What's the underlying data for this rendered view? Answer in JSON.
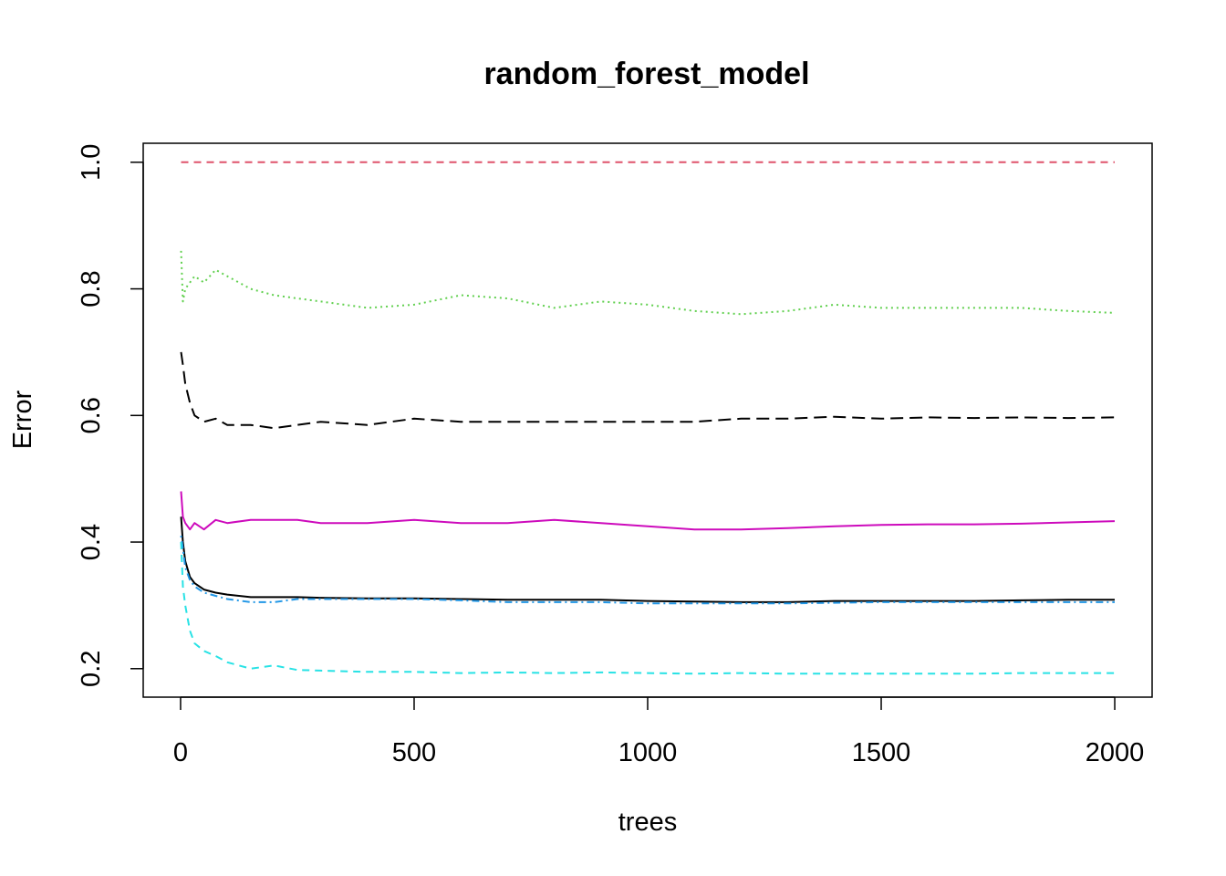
{
  "chart_data": {
    "type": "line",
    "title": "random_forest_model",
    "xlabel": "trees",
    "ylabel": "Error",
    "xlim": [
      -80,
      2080
    ],
    "ylim": [
      0.155,
      1.03
    ],
    "x_ticks": [
      0,
      500,
      1000,
      1500,
      2000
    ],
    "x_tick_labels": [
      "0",
      "500",
      "1000",
      "1500",
      "2000"
    ],
    "y_ticks": [
      0.2,
      0.4,
      0.6,
      0.8,
      1.0
    ],
    "y_tick_labels": [
      "0.2",
      "0.4",
      "0.6",
      "0.8",
      "1.0"
    ],
    "grid": false,
    "legend": "none",
    "x": [
      1,
      5,
      10,
      20,
      30,
      50,
      75,
      100,
      150,
      200,
      250,
      300,
      400,
      500,
      600,
      700,
      800,
      900,
      1000,
      1100,
      1200,
      1300,
      1400,
      1500,
      1600,
      1700,
      1800,
      1900,
      2000
    ],
    "series": [
      {
        "color": "#DF536B",
        "dash": "dashed",
        "values": [
          1.0,
          1.0,
          1.0,
          1.0,
          1.0,
          1.0,
          1.0,
          1.0,
          1.0,
          1.0,
          1.0,
          1.0,
          1.0,
          1.0,
          1.0,
          1.0,
          1.0,
          1.0,
          1.0,
          1.0,
          1.0,
          1.0,
          1.0,
          1.0,
          1.0,
          1.0,
          1.0,
          1.0,
          1.0
        ]
      },
      {
        "color": "#61D04F",
        "dash": "dotted",
        "values": [
          0.86,
          0.78,
          0.8,
          0.81,
          0.82,
          0.81,
          0.83,
          0.82,
          0.8,
          0.79,
          0.785,
          0.78,
          0.77,
          0.775,
          0.79,
          0.785,
          0.77,
          0.78,
          0.775,
          0.765,
          0.76,
          0.765,
          0.775,
          0.77,
          0.77,
          0.77,
          0.77,
          0.765,
          0.762
        ]
      },
      {
        "color": "#000000",
        "dash": "longdash",
        "values": [
          0.7,
          0.68,
          0.65,
          0.62,
          0.6,
          0.59,
          0.595,
          0.585,
          0.585,
          0.58,
          0.585,
          0.59,
          0.585,
          0.595,
          0.59,
          0.59,
          0.59,
          0.59,
          0.59,
          0.59,
          0.595,
          0.595,
          0.598,
          0.595,
          0.597,
          0.596,
          0.597,
          0.596,
          0.597
        ]
      },
      {
        "color": "#CD0BBC",
        "dash": "solid",
        "values": [
          0.48,
          0.44,
          0.43,
          0.42,
          0.43,
          0.42,
          0.435,
          0.43,
          0.435,
          0.435,
          0.435,
          0.43,
          0.43,
          0.435,
          0.43,
          0.43,
          0.435,
          0.43,
          0.425,
          0.42,
          0.42,
          0.422,
          0.425,
          0.427,
          0.428,
          0.428,
          0.429,
          0.431,
          0.433
        ]
      },
      {
        "color": "#000000",
        "dash": "solid",
        "values": [
          0.44,
          0.4,
          0.37,
          0.345,
          0.335,
          0.325,
          0.32,
          0.317,
          0.313,
          0.313,
          0.313,
          0.312,
          0.311,
          0.311,
          0.31,
          0.309,
          0.309,
          0.309,
          0.307,
          0.306,
          0.305,
          0.305,
          0.307,
          0.307,
          0.307,
          0.307,
          0.308,
          0.309,
          0.309
        ]
      },
      {
        "color": "#2297E6",
        "dash": "dotdash",
        "values": [
          0.41,
          0.39,
          0.36,
          0.34,
          0.33,
          0.32,
          0.315,
          0.31,
          0.305,
          0.305,
          0.31,
          0.31,
          0.31,
          0.31,
          0.308,
          0.305,
          0.305,
          0.305,
          0.303,
          0.303,
          0.303,
          0.303,
          0.304,
          0.305,
          0.305,
          0.305,
          0.305,
          0.305,
          0.305
        ]
      },
      {
        "color": "#28E2E5",
        "dash": "dashed",
        "values": [
          0.4,
          0.33,
          0.3,
          0.26,
          0.24,
          0.228,
          0.22,
          0.21,
          0.2,
          0.205,
          0.198,
          0.197,
          0.195,
          0.195,
          0.193,
          0.194,
          0.193,
          0.194,
          0.193,
          0.192,
          0.193,
          0.192,
          0.192,
          0.192,
          0.192,
          0.192,
          0.193,
          0.193,
          0.193
        ]
      }
    ]
  }
}
